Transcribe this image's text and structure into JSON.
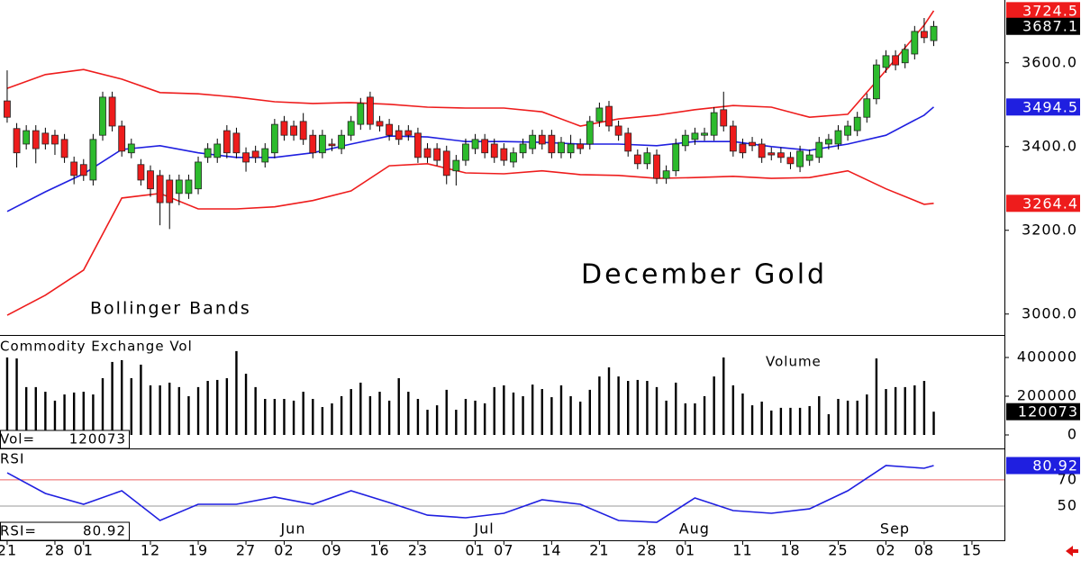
{
  "chart_data": [
    {
      "type": "candlestick",
      "title": "December Gold",
      "annotations": [
        "Bollinger Bands"
      ],
      "x": [
        0,
        1,
        2,
        3,
        4,
        5,
        6,
        7,
        8,
        9,
        10,
        11,
        12,
        13,
        14,
        15,
        16,
        17,
        18,
        19,
        20,
        21,
        22,
        23,
        24,
        25,
        26,
        27,
        28,
        29,
        30,
        31,
        32,
        33,
        34,
        35,
        36,
        37,
        38,
        39,
        40,
        41,
        42,
        43,
        44,
        45,
        46,
        47,
        48,
        49,
        50,
        51,
        52,
        53,
        54,
        55,
        56,
        57,
        58,
        59,
        60,
        61,
        62,
        63,
        64,
        65,
        66,
        67,
        68,
        69,
        70,
        71,
        72,
        73,
        74,
        75,
        76,
        77,
        78,
        79,
        80,
        81,
        82,
        83,
        84,
        85,
        86,
        87,
        88,
        89,
        90,
        91,
        92,
        93,
        94,
        95,
        96,
        97
      ],
      "open": [
        3509,
        3443,
        3406,
        3438,
        3432,
        3427,
        3417,
        3363,
        3357,
        3320,
        3427,
        3518,
        3449,
        3385,
        3357,
        3342,
        3331,
        3320,
        3288,
        3288,
        3299,
        3374,
        3374,
        3438,
        3432,
        3385,
        3389,
        3363,
        3385,
        3460,
        3449,
        3460,
        3427,
        3385,
        3406,
        3395,
        3427,
        3453,
        3518,
        3460,
        3453,
        3438,
        3438,
        3432,
        3395,
        3395,
        3389,
        3342,
        3367,
        3395,
        3417,
        3406,
        3395,
        3363,
        3385,
        3395,
        3427,
        3427,
        3385,
        3385,
        3406,
        3406,
        3460,
        3496,
        3449,
        3432,
        3380,
        3359,
        3380,
        3324,
        3342,
        3402,
        3417,
        3427,
        3427,
        3488,
        3449,
        3406,
        3410,
        3406,
        3385,
        3385,
        3374,
        3352,
        3367,
        3374,
        3406,
        3406,
        3427,
        3438,
        3470,
        3514,
        3589,
        3617,
        3600,
        3621,
        3675,
        3653
      ],
      "high": [
        3582,
        3456,
        3451,
        3451,
        3445,
        3440,
        3430,
        3376,
        3370,
        3430,
        3531,
        3531,
        3462,
        3419,
        3370,
        3355,
        3344,
        3333,
        3333,
        3333,
        3376,
        3408,
        3419,
        3451,
        3445,
        3398,
        3402,
        3408,
        3466,
        3473,
        3462,
        3480,
        3440,
        3440,
        3419,
        3440,
        3473,
        3516,
        3531,
        3473,
        3466,
        3451,
        3451,
        3445,
        3408,
        3408,
        3402,
        3380,
        3419,
        3430,
        3430,
        3419,
        3408,
        3398,
        3419,
        3440,
        3440,
        3440,
        3423,
        3428,
        3419,
        3473,
        3505,
        3509,
        3462,
        3445,
        3393,
        3398,
        3393,
        3355,
        3419,
        3440,
        3445,
        3445,
        3494,
        3531,
        3462,
        3419,
        3423,
        3419,
        3398,
        3398,
        3387,
        3402,
        3393,
        3423,
        3430,
        3451,
        3462,
        3483,
        3527,
        3608,
        3630,
        3630,
        3645,
        3688,
        3707,
        3700
      ],
      "low": [
        3457,
        3350,
        3393,
        3360,
        3393,
        3380,
        3361,
        3310,
        3318,
        3307,
        3414,
        3436,
        3376,
        3372,
        3307,
        3280,
        3212,
        3203,
        3260,
        3275,
        3286,
        3361,
        3361,
        3372,
        3372,
        3340,
        3361,
        3350,
        3372,
        3414,
        3414,
        3404,
        3372,
        3372,
        3389,
        3382,
        3414,
        3440,
        3440,
        3436,
        3414,
        3404,
        3414,
        3361,
        3361,
        3354,
        3310,
        3307,
        3354,
        3382,
        3372,
        3361,
        3354,
        3350,
        3372,
        3382,
        3393,
        3372,
        3372,
        3372,
        3382,
        3393,
        3447,
        3436,
        3414,
        3376,
        3346,
        3346,
        3311,
        3311,
        3329,
        3389,
        3404,
        3414,
        3414,
        3436,
        3376,
        3372,
        3389,
        3361,
        3367,
        3361,
        3346,
        3339,
        3354,
        3361,
        3393,
        3393,
        3414,
        3425,
        3457,
        3501,
        3576,
        3582,
        3587,
        3608,
        3647,
        3640
      ],
      "close": [
        3470,
        3385,
        3438,
        3395,
        3406,
        3406,
        3374,
        3331,
        3331,
        3417,
        3518,
        3449,
        3389,
        3406,
        3320,
        3299,
        3266,
        3266,
        3320,
        3320,
        3363,
        3395,
        3406,
        3385,
        3385,
        3363,
        3374,
        3395,
        3453,
        3427,
        3427,
        3417,
        3385,
        3427,
        3402,
        3427,
        3460,
        3503,
        3453,
        3449,
        3427,
        3417,
        3427,
        3374,
        3374,
        3367,
        3331,
        3367,
        3406,
        3417,
        3385,
        3374,
        3367,
        3385,
        3406,
        3427,
        3406,
        3385,
        3410,
        3406,
        3395,
        3460,
        3492,
        3449,
        3427,
        3389,
        3359,
        3385,
        3324,
        3342,
        3406,
        3427,
        3432,
        3432,
        3481,
        3449,
        3389,
        3385,
        3402,
        3374,
        3380,
        3374,
        3359,
        3389,
        3380,
        3410,
        3417,
        3438,
        3449,
        3470,
        3514,
        3595,
        3617,
        3595,
        3632,
        3675,
        3660,
        3687.1
      ],
      "up_color": "#2dbb2d",
      "down_color": "#ee1c1c",
      "last_color": "#000000",
      "lines_x": [
        0,
        4,
        8,
        12,
        16,
        20,
        24,
        28,
        32,
        36,
        40,
        44,
        48,
        52,
        56,
        60,
        64,
        68,
        72,
        76,
        80,
        84,
        88,
        92,
        96,
        97
      ],
      "lines": [
        {
          "color": "#ee1c1c",
          "values": [
            3539,
            3572,
            3584,
            3561,
            3529,
            3526,
            3518,
            3507,
            3503,
            3505,
            3501,
            3494,
            3492,
            3492,
            3483,
            3449,
            3466,
            3475,
            3488,
            3498,
            3494,
            3470,
            3477,
            3582,
            3690,
            3724.5
          ]
        },
        {
          "color": "#1f1fe0",
          "values": [
            3245,
            3292,
            3335,
            3393,
            3402,
            3385,
            3374,
            3374,
            3385,
            3406,
            3425,
            3423,
            3412,
            3412,
            3410,
            3406,
            3406,
            3402,
            3412,
            3412,
            3400,
            3391,
            3406,
            3427,
            3475,
            3494.5
          ]
        },
        {
          "color": "#ee1c1c",
          "values": [
            2997,
            3045,
            3105,
            3277,
            3288,
            3251,
            3251,
            3256,
            3271,
            3294,
            3354,
            3359,
            3337,
            3335,
            3342,
            3333,
            3331,
            3324,
            3326,
            3329,
            3324,
            3326,
            3342,
            3299,
            3262,
            3264.4
          ]
        }
      ],
      "xlim": [
        -0.75,
        104.4
      ],
      "ylim": [
        2950,
        3750
      ],
      "yticks": [
        {
          "value": 3000,
          "label": "3000.0"
        },
        {
          "value": 3200,
          "label": "3200.0"
        },
        {
          "value": 3400,
          "label": "3400.0"
        },
        {
          "value": 3600,
          "label": "3600.0"
        }
      ]
    },
    {
      "type": "bar",
      "title": "Commodity Exchange Vol",
      "annotations": [
        "Volume"
      ],
      "readout_label": "Vol=",
      "values": [
        400000,
        395000,
        247000,
        247000,
        223000,
        177000,
        209000,
        219000,
        223000,
        209000,
        293000,
        377000,
        386000,
        293000,
        363000,
        256000,
        256000,
        270000,
        247000,
        200000,
        247000,
        279000,
        284000,
        293000,
        433000,
        316000,
        247000,
        186000,
        186000,
        186000,
        177000,
        223000,
        186000,
        144000,
        163000,
        200000,
        237000,
        270000,
        200000,
        223000,
        177000,
        293000,
        223000,
        186000,
        130000,
        153000,
        233000,
        130000,
        186000,
        177000,
        163000,
        247000,
        256000,
        219000,
        200000,
        260000,
        237000,
        195000,
        256000,
        200000,
        172000,
        233000,
        302000,
        349000,
        302000,
        279000,
        284000,
        279000,
        247000,
        177000,
        270000,
        163000,
        163000,
        200000,
        302000,
        400000,
        256000,
        214000,
        153000,
        172000,
        126000,
        140000,
        140000,
        140000,
        149000,
        200000,
        107000,
        186000,
        177000,
        177000,
        209000,
        395000,
        237000,
        247000,
        247000,
        256000,
        279000,
        120073
      ],
      "color": "#000000",
      "last_color": "#000000",
      "xlim": [
        -0.75,
        104.4
      ],
      "ylim": [
        -69800,
        511600
      ],
      "yticks": [
        0,
        200000,
        400000
      ]
    },
    {
      "type": "line",
      "title": "RSI",
      "readout_label": "RSI=",
      "x": [
        0,
        4,
        8,
        12,
        16,
        20,
        24,
        28,
        32,
        36,
        40,
        44,
        48,
        52,
        56,
        60,
        64,
        68,
        72,
        76,
        80,
        84,
        88,
        92,
        96,
        97
      ],
      "values": [
        75.4,
        59.6,
        51.4,
        61.7,
        39,
        51.4,
        51.4,
        56.9,
        51.4,
        61.7,
        52.7,
        43.1,
        41.1,
        44.5,
        54.8,
        51.4,
        39,
        37.6,
        56.2,
        46.6,
        44.5,
        47.9,
        61.7,
        80.9,
        78.9,
        80.92
      ],
      "color": "#1f1fe0",
      "last_color": "#1f1fe0",
      "xlim": [
        -0.75,
        104.4
      ],
      "ylim": [
        23.9,
        93.3
      ],
      "yticks": [
        50,
        70
      ],
      "ytick_line_colors": [
        "#999999",
        "#ee6060"
      ],
      "xticks": [
        {
          "value": 0,
          "label": "21"
        },
        {
          "value": 5,
          "label": "28"
        },
        {
          "value": 8,
          "label": "01"
        },
        {
          "value": 15,
          "label": "12"
        },
        {
          "value": 20,
          "label": "19"
        },
        {
          "value": 25,
          "label": "27"
        },
        {
          "value": 29,
          "label": "02"
        },
        {
          "value": 34,
          "label": "09"
        },
        {
          "value": 39,
          "label": "16"
        },
        {
          "value": 43,
          "label": "23"
        },
        {
          "value": 49,
          "label": "01"
        },
        {
          "value": 52,
          "label": "07"
        },
        {
          "value": 57,
          "label": "14"
        },
        {
          "value": 62,
          "label": "21"
        },
        {
          "value": 67,
          "label": "28"
        },
        {
          "value": 71,
          "label": "01"
        },
        {
          "value": 77,
          "label": "11"
        },
        {
          "value": 82,
          "label": "18"
        },
        {
          "value": 87,
          "label": "25"
        },
        {
          "value": 92,
          "label": "02"
        },
        {
          "value": 96,
          "label": "08"
        },
        {
          "value": 101,
          "label": "15"
        }
      ],
      "month_ticks": [
        {
          "value": 29,
          "label": "Jun"
        },
        {
          "value": 49,
          "label": "Jul"
        },
        {
          "value": 71,
          "label": "Aug"
        },
        {
          "value": 92,
          "label": "Sep"
        }
      ]
    }
  ]
}
